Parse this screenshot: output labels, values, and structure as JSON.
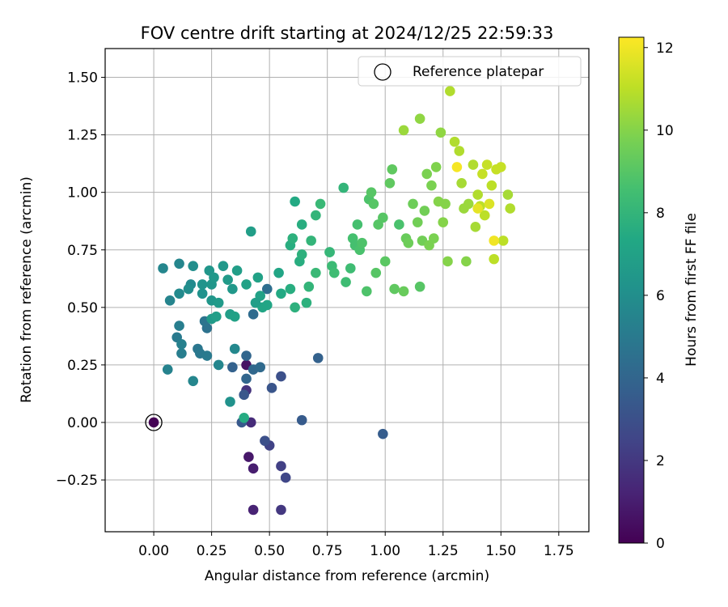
{
  "chart_data": {
    "type": "scatter",
    "title": "FOV centre drift starting at 2024/12/25 22:59:33",
    "xlabel": "Angular distance from reference (arcmin)",
    "ylabel": "Rotation from reference (arcmin)",
    "xlim": [
      -0.21,
      1.88
    ],
    "ylim": [
      -0.475,
      1.625
    ],
    "x_ticks": [
      0.0,
      0.25,
      0.5,
      0.75,
      1.0,
      1.25,
      1.5,
      1.75
    ],
    "x_tick_labels": [
      "0.00",
      "0.25",
      "0.50",
      "0.75",
      "1.00",
      "1.25",
      "1.50",
      "1.75"
    ],
    "y_ticks": [
      -0.25,
      0.0,
      0.25,
      0.5,
      0.75,
      1.0,
      1.25,
      1.5
    ],
    "y_tick_labels": [
      "−0.25",
      "0.00",
      "0.25",
      "0.50",
      "0.75",
      "1.00",
      "1.25",
      "1.50"
    ],
    "grid": true,
    "legend": {
      "placement": "top-right",
      "entries": [
        "Reference platepar"
      ]
    },
    "reference_point": {
      "x": 0.0,
      "y": 0.0,
      "hours": 0.0
    },
    "colorbar": {
      "label": "Hours from first FF file",
      "colormap": "viridis",
      "range": [
        0,
        12.25
      ],
      "ticks": [
        0,
        2,
        4,
        6,
        8,
        10,
        12
      ],
      "tick_labels": [
        "0",
        "2",
        "4",
        "6",
        "8",
        "10",
        "12"
      ]
    },
    "points": [
      [
        0.0,
        0.0,
        0.0
      ],
      [
        0.4,
        0.25,
        0.6
      ],
      [
        0.41,
        -0.15,
        0.8
      ],
      [
        0.43,
        -0.2,
        1.0
      ],
      [
        0.43,
        -0.38,
        1.2
      ],
      [
        0.42,
        0.0,
        1.5
      ],
      [
        0.4,
        0.14,
        1.8
      ],
      [
        0.55,
        -0.38,
        2.0
      ],
      [
        0.55,
        -0.19,
        2.3
      ],
      [
        0.57,
        -0.24,
        2.6
      ],
      [
        0.5,
        -0.1,
        2.4
      ],
      [
        0.48,
        -0.08,
        3.0
      ],
      [
        0.55,
        0.2,
        3.0
      ],
      [
        0.51,
        0.15,
        3.2
      ],
      [
        0.39,
        0.12,
        3.3
      ],
      [
        0.38,
        0.0,
        3.4
      ],
      [
        0.64,
        0.01,
        3.5
      ],
      [
        0.99,
        -0.05,
        3.6
      ],
      [
        0.71,
        0.28,
        3.8
      ],
      [
        0.34,
        0.24,
        3.8
      ],
      [
        0.4,
        0.29,
        4.0
      ],
      [
        0.4,
        0.19,
        4.0
      ],
      [
        0.43,
        0.23,
        4.1
      ],
      [
        0.46,
        0.24,
        4.2
      ],
      [
        0.43,
        0.47,
        4.3
      ],
      [
        0.49,
        0.58,
        4.4
      ],
      [
        0.23,
        0.41,
        4.6
      ],
      [
        0.22,
        0.44,
        4.7
      ],
      [
        0.19,
        0.32,
        4.8
      ],
      [
        0.2,
        0.3,
        4.9
      ],
      [
        0.23,
        0.29,
        5.0
      ],
      [
        0.1,
        0.37,
        5.0
      ],
      [
        0.12,
        0.3,
        5.2
      ],
      [
        0.11,
        0.42,
        5.2
      ],
      [
        0.06,
        0.23,
        5.4
      ],
      [
        0.12,
        0.34,
        5.3
      ],
      [
        0.17,
        0.18,
        5.6
      ],
      [
        0.28,
        0.25,
        5.6
      ],
      [
        0.35,
        0.32,
        5.7
      ],
      [
        0.04,
        0.67,
        5.6
      ],
      [
        0.07,
        0.53,
        5.5
      ],
      [
        0.11,
        0.56,
        5.8
      ],
      [
        0.11,
        0.69,
        5.6
      ],
      [
        0.16,
        0.6,
        5.8
      ],
      [
        0.17,
        0.68,
        6.0
      ],
      [
        0.15,
        0.58,
        6.0
      ],
      [
        0.21,
        0.56,
        6.2
      ],
      [
        0.21,
        0.6,
        6.3
      ],
      [
        0.25,
        0.6,
        6.4
      ],
      [
        0.24,
        0.66,
        6.4
      ],
      [
        0.26,
        0.63,
        6.5
      ],
      [
        0.3,
        0.68,
        6.5
      ],
      [
        0.32,
        0.62,
        6.6
      ],
      [
        0.34,
        0.58,
        6.5
      ],
      [
        0.25,
        0.53,
        6.4
      ],
      [
        0.28,
        0.52,
        6.6
      ],
      [
        0.25,
        0.45,
        6.6
      ],
      [
        0.27,
        0.46,
        6.8
      ],
      [
        0.33,
        0.47,
        6.8
      ],
      [
        0.35,
        0.46,
        7.0
      ],
      [
        0.33,
        0.09,
        6.2
      ],
      [
        0.36,
        0.66,
        6.8
      ],
      [
        0.42,
        0.83,
        6.8
      ],
      [
        0.4,
        0.6,
        7.0
      ],
      [
        0.45,
        0.63,
        7.0
      ],
      [
        0.46,
        0.55,
        7.0
      ],
      [
        0.47,
        0.5,
        7.2
      ],
      [
        0.49,
        0.51,
        7.2
      ],
      [
        0.44,
        0.52,
        6.8
      ],
      [
        0.39,
        0.02,
        7.5
      ],
      [
        0.54,
        0.65,
        7.2
      ],
      [
        0.55,
        0.56,
        7.4
      ],
      [
        0.59,
        0.58,
        7.6
      ],
      [
        0.59,
        0.77,
        7.6
      ],
      [
        0.6,
        0.8,
        7.8
      ],
      [
        0.61,
        0.5,
        7.8
      ],
      [
        0.61,
        0.96,
        7.4
      ],
      [
        0.63,
        0.7,
        7.6
      ],
      [
        0.64,
        0.86,
        7.6
      ],
      [
        0.64,
        0.73,
        7.8
      ],
      [
        0.66,
        0.52,
        7.8
      ],
      [
        0.67,
        0.59,
        8.0
      ],
      [
        0.68,
        0.79,
        8.0
      ],
      [
        0.7,
        0.9,
        8.0
      ],
      [
        0.72,
        0.95,
        8.2
      ],
      [
        0.7,
        0.65,
        8.2
      ],
      [
        0.76,
        0.74,
        8.2
      ],
      [
        0.77,
        0.68,
        8.3
      ],
      [
        0.78,
        0.65,
        8.4
      ],
      [
        0.82,
        1.02,
        8.0
      ],
      [
        0.83,
        0.61,
        8.4
      ],
      [
        0.85,
        0.67,
        8.4
      ],
      [
        0.86,
        0.8,
        8.6
      ],
      [
        0.87,
        0.77,
        8.6
      ],
      [
        0.88,
        0.86,
        8.6
      ],
      [
        0.89,
        0.75,
        8.7
      ],
      [
        0.9,
        0.78,
        8.8
      ],
      [
        0.92,
        0.57,
        8.8
      ],
      [
        0.93,
        0.97,
        8.8
      ],
      [
        0.95,
        0.95,
        9.0
      ],
      [
        0.96,
        0.65,
        9.0
      ],
      [
        0.97,
        0.86,
        9.0
      ],
      [
        0.99,
        0.89,
        9.0
      ],
      [
        1.0,
        0.7,
        9.1
      ],
      [
        1.02,
        1.04,
        9.2
      ],
      [
        1.03,
        1.1,
        9.2
      ],
      [
        1.04,
        0.58,
        9.2
      ],
      [
        1.06,
        0.86,
        8.7
      ],
      [
        1.08,
        0.57,
        9.4
      ],
      [
        1.09,
        0.8,
        9.4
      ],
      [
        1.1,
        0.78,
        9.5
      ],
      [
        1.12,
        0.95,
        9.5
      ],
      [
        1.14,
        0.87,
        9.6
      ],
      [
        1.15,
        0.59,
        9.0
      ],
      [
        1.16,
        0.79,
        9.6
      ],
      [
        1.17,
        0.92,
        9.6
      ],
      [
        1.18,
        1.08,
        9.8
      ],
      [
        1.19,
        0.77,
        9.8
      ],
      [
        1.2,
        1.03,
        9.8
      ],
      [
        1.21,
        0.8,
        9.8
      ],
      [
        1.22,
        1.11,
        9.9
      ],
      [
        1.23,
        0.96,
        10.0
      ],
      [
        1.25,
        0.87,
        10.0
      ],
      [
        1.26,
        0.95,
        10.0
      ],
      [
        1.27,
        0.7,
        10.0
      ],
      [
        1.08,
        1.27,
        10.4
      ],
      [
        1.15,
        1.32,
        10.2
      ],
      [
        1.24,
        1.26,
        10.2
      ],
      [
        1.28,
        1.44,
        10.8
      ],
      [
        1.3,
        1.22,
        10.8
      ],
      [
        1.32,
        1.18,
        10.8
      ],
      [
        1.33,
        1.04,
        10.6
      ],
      [
        1.34,
        0.93,
        10.4
      ],
      [
        1.35,
        0.7,
        10.0
      ],
      [
        1.36,
        0.95,
        10.4
      ],
      [
        1.38,
        1.12,
        10.8
      ],
      [
        1.39,
        0.85,
        10.6
      ],
      [
        1.4,
        0.99,
        10.8
      ],
      [
        1.41,
        0.94,
        11.0
      ],
      [
        1.42,
        1.08,
        11.2
      ],
      [
        1.43,
        0.9,
        11.0
      ],
      [
        1.44,
        1.12,
        11.2
      ],
      [
        1.45,
        0.95,
        11.6
      ],
      [
        1.46,
        1.03,
        11.0
      ],
      [
        1.47,
        0.71,
        11.0
      ],
      [
        1.48,
        1.1,
        11.2
      ],
      [
        1.5,
        1.11,
        11.2
      ],
      [
        1.51,
        0.79,
        11.0
      ],
      [
        1.53,
        0.99,
        10.6
      ],
      [
        1.54,
        0.93,
        10.8
      ],
      [
        1.31,
        1.11,
        12.1
      ],
      [
        1.4,
        0.93,
        11.8
      ],
      [
        1.47,
        0.79,
        12.0
      ],
      [
        0.94,
        1.0,
        9.0
      ],
      [
        0.76,
        0.74,
        8.1
      ]
    ]
  }
}
